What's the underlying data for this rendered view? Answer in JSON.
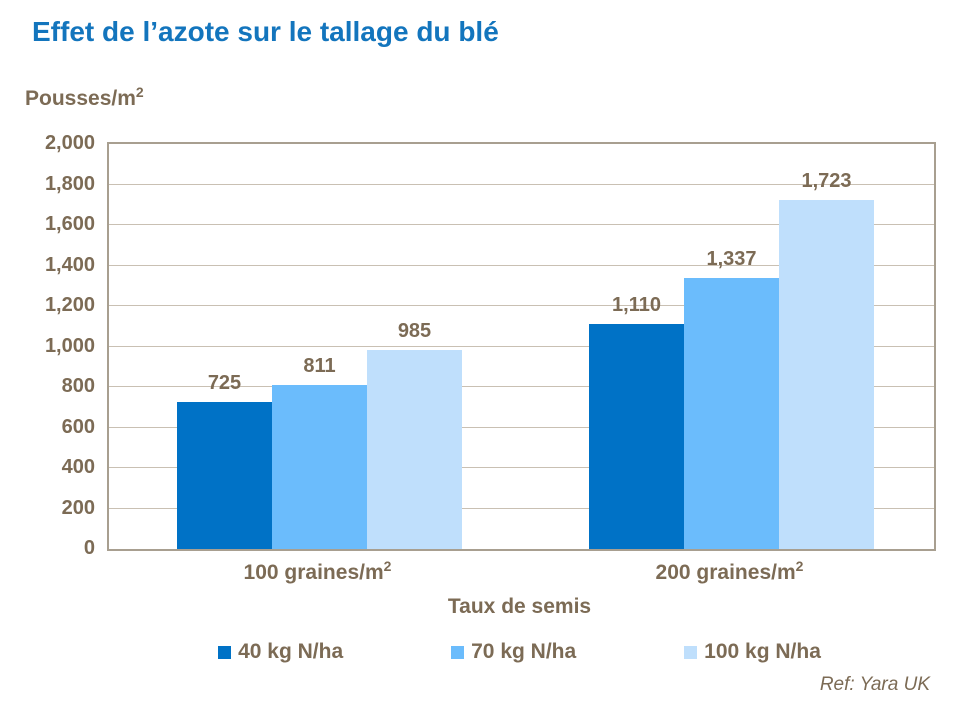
{
  "title": "Effet de l’azote sur le tallage du blé",
  "y_axis": {
    "label_text": "Pousses/m",
    "label_sup": "2"
  },
  "reference": "Ref: Yara UK",
  "colors": {
    "title_blue": "#1375BD",
    "text_brown": "#7C6B55",
    "grid_line": "#C9C0B3",
    "plot_border": "#A89F90",
    "bar_dark_blue": "#0072C6",
    "bar_medium_blue": "#6BBCFC",
    "bar_light_blue": "#BFDFFC"
  },
  "chart_data": {
    "type": "bar",
    "title": "Effet de l’azote sur le tallage du blé",
    "ylabel": "Pousses/m2",
    "xlabel": "Taux de semis",
    "ylim": [
      0,
      2000
    ],
    "ytick_step": 200,
    "grid": true,
    "legend_position": "bottom",
    "categories": [
      {
        "text": "100 graines/m",
        "sup": "2"
      },
      {
        "text": "200 graines/m",
        "sup": "2"
      }
    ],
    "series": [
      {
        "name": "40 kg N/ha",
        "color": "#0072C6",
        "values": [
          725,
          1110
        ]
      },
      {
        "name": "70 kg N/ha",
        "color": "#6BBCFC",
        "values": [
          811,
          1337
        ]
      },
      {
        "name": "100 kg N/ha",
        "color": "#BFDFFC",
        "values": [
          985,
          1723
        ]
      }
    ]
  }
}
